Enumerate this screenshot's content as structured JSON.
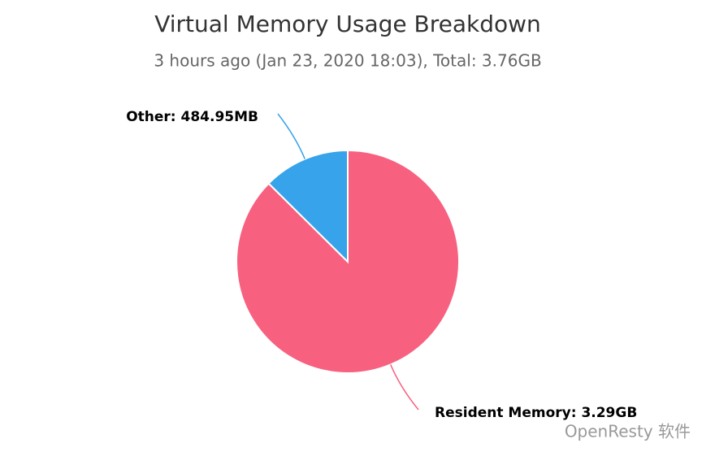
{
  "chart_data": {
    "type": "pie",
    "title": "Virtual Memory Usage Breakdown",
    "subtitle": "3 hours ago (Jan 23, 2020 18:03), Total: 3.76GB",
    "categories": [
      "Resident Memory",
      "Other"
    ],
    "values": [
      3.29,
      0.473584
    ],
    "value_labels": [
      "3.29GB",
      "484.95MB"
    ],
    "colors": [
      "#f7617f",
      "#37a3ea"
    ]
  },
  "watermark": "OpenResty 软件"
}
